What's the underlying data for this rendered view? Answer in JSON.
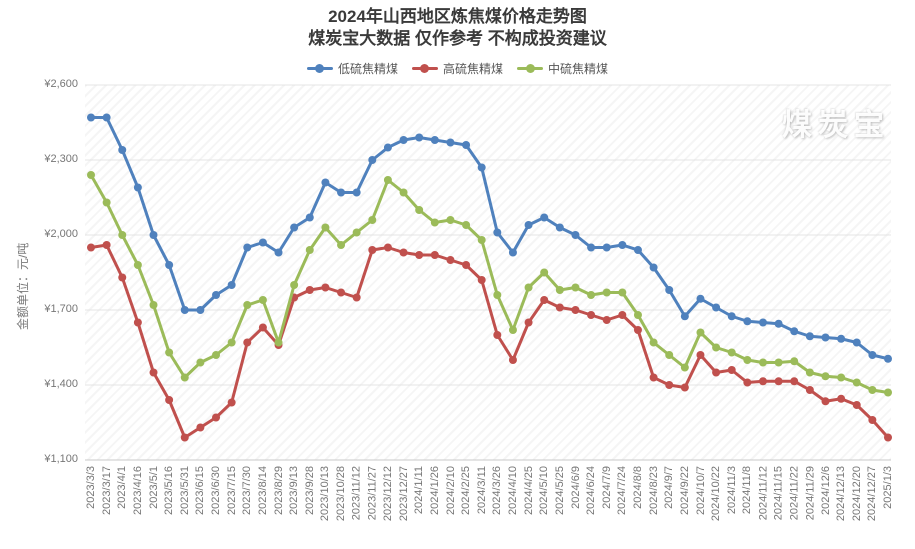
{
  "title": {
    "line1": "2024年山西地区炼焦煤价格走势图",
    "line2": "煤炭宝大数据 仅作参考 不构成投资建议"
  },
  "watermark": "煤炭宝",
  "colors": {
    "low_sulfur": "#4f81bd",
    "high_sulfur": "#c0504d",
    "mid_sulfur": "#9bbb59"
  },
  "legend": [
    {
      "label": "低硫焦精煤",
      "color": "#4f81bd"
    },
    {
      "label": "高硫焦精煤",
      "color": "#c0504d"
    },
    {
      "label": "中硫焦精煤",
      "color": "#9bbb59"
    }
  ],
  "y_axis": {
    "unit_label": "金额单位：元/吨",
    "currency_prefix": "¥"
  },
  "chart_data": {
    "type": "line",
    "title": "2024年山西地区炼焦煤价格走势图",
    "subtitle": "煤炭宝大数据 仅作参考 不构成投资建议",
    "ylabel": "金额单位：元/吨",
    "ylim": [
      1100,
      2600
    ],
    "y_ticks": [
      2600,
      2300,
      2000,
      1700,
      1400,
      1100
    ],
    "grid": true,
    "legend_position": "top",
    "categories": [
      "2023/3/3",
      "2023/3/17",
      "2023/4/1",
      "2023/4/16",
      "2023/5/1",
      "2023/5/16",
      "2023/5/31",
      "2023/6/15",
      "2023/6/30",
      "2023/7/15",
      "2023/7/30",
      "2023/8/14",
      "2023/8/29",
      "2023/9/13",
      "2023/9/28",
      "2023/10/13",
      "2023/10/28",
      "2023/11/12",
      "2023/11/27",
      "2023/12/12",
      "2023/12/27",
      "2024/1/11",
      "2024/1/26",
      "2024/2/10",
      "2024/2/25",
      "2024/3/11",
      "2024/3/26",
      "2024/4/10",
      "2024/4/25",
      "2024/5/10",
      "2024/5/25",
      "2024/6/9",
      "2024/6/24",
      "2024/7/9",
      "2024/7/24",
      "2024/8/8",
      "2024/8/23",
      "2024/9/7",
      "2024/9/22",
      "2024/10/7",
      "2024/10/22",
      "2024/11/3",
      "2024/11/8",
      "2024/11/12",
      "2024/11/15",
      "2024/11/22",
      "2024/11/29",
      "2024/12/6",
      "2024/12/13",
      "2024/12/20",
      "2024/12/27",
      "2025/1/3"
    ],
    "series": [
      {
        "name": "低硫焦精煤",
        "color": "#4f81bd",
        "values": [
          2470,
          2470,
          2340,
          2190,
          2000,
          1880,
          1700,
          1700,
          1760,
          1800,
          1950,
          1970,
          1930,
          2030,
          2070,
          2210,
          2170,
          2170,
          2300,
          2350,
          2380,
          2390,
          2380,
          2370,
          2360,
          2270,
          2010,
          1930,
          2040,
          2070,
          2030,
          2000,
          1950,
          1950,
          1960,
          1940,
          1870,
          1780,
          1675,
          1745,
          1710,
          1675,
          1655,
          1650,
          1645,
          1615,
          1595,
          1590,
          1585,
          1570,
          1520,
          1505
        ]
      },
      {
        "name": "高硫焦精煤",
        "color": "#c0504d",
        "values": [
          1950,
          1960,
          1830,
          1650,
          1450,
          1340,
          1190,
          1230,
          1270,
          1330,
          1570,
          1630,
          1560,
          1750,
          1780,
          1790,
          1770,
          1750,
          1940,
          1950,
          1930,
          1920,
          1920,
          1900,
          1880,
          1820,
          1600,
          1500,
          1650,
          1740,
          1710,
          1700,
          1680,
          1660,
          1680,
          1620,
          1430,
          1400,
          1390,
          1520,
          1450,
          1460,
          1410,
          1415,
          1415,
          1415,
          1380,
          1335,
          1345,
          1320,
          1260,
          1190
        ]
      },
      {
        "name": "中硫焦精煤",
        "color": "#9bbb59",
        "values": [
          2240,
          2130,
          2000,
          1880,
          1720,
          1530,
          1430,
          1490,
          1520,
          1570,
          1720,
          1740,
          1570,
          1800,
          1940,
          2030,
          1960,
          2010,
          2060,
          2220,
          2170,
          2100,
          2050,
          2060,
          2040,
          1980,
          1760,
          1620,
          1790,
          1850,
          1780,
          1790,
          1760,
          1770,
          1770,
          1680,
          1570,
          1520,
          1470,
          1610,
          1550,
          1530,
          1500,
          1490,
          1490,
          1495,
          1450,
          1435,
          1430,
          1410,
          1380,
          1370
        ]
      }
    ]
  }
}
